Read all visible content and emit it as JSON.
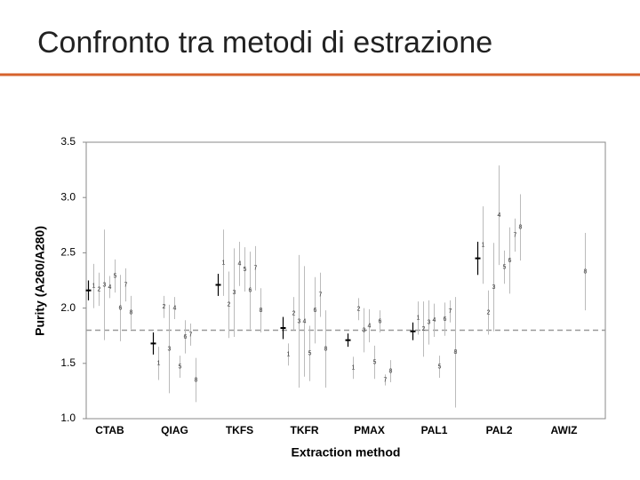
{
  "header": {
    "title": "Confronto tra metodi di estrazione"
  },
  "chart_data": {
    "type": "replicate-errorbar",
    "xlabel": "Extraction method",
    "ylabel": "Purity (A260/A280)",
    "categories": [
      "CTAB",
      "QIAG",
      "TKFS",
      "TKFR",
      "PMAX",
      "PAL1",
      "PAL2",
      "AWIZ"
    ],
    "mean": [
      2.16,
      1.68,
      2.21,
      1.82,
      1.71,
      1.79,
      2.45,
      null
    ],
    "mean_error": [
      0.09,
      0.1,
      0.1,
      0.1,
      0.06,
      0.08,
      0.15,
      null
    ],
    "mean_color": "#000000",
    "series": [
      {
        "name": "1",
        "color": "#bbbbbb",
        "values": [
          2.2,
          1.5,
          2.41,
          1.58,
          1.46,
          1.91,
          2.57,
          null
        ],
        "errors": [
          0.2,
          0.15,
          0.3,
          0.1,
          0.1,
          0.15,
          0.35,
          null
        ]
      },
      {
        "name": "2",
        "color": "#bbbbbb",
        "values": [
          2.17,
          2.01,
          2.03,
          1.95,
          1.99,
          1.81,
          1.96,
          null
        ],
        "errors": [
          0.15,
          0.1,
          0.3,
          0.15,
          0.1,
          0.25,
          0.2,
          null
        ]
      },
      {
        "name": "3",
        "color": "#bbbbbb",
        "values": [
          2.21,
          1.63,
          2.14,
          1.88,
          1.8,
          1.87,
          2.19,
          null
        ],
        "errors": [
          0.5,
          0.4,
          0.4,
          0.6,
          0.2,
          0.2,
          0.4,
          null
        ]
      },
      {
        "name": "4",
        "color": "#bbbbbb",
        "values": [
          2.19,
          2.0,
          2.4,
          1.88,
          1.84,
          1.89,
          2.84,
          null
        ],
        "errors": [
          0.1,
          0.1,
          0.2,
          0.5,
          0.15,
          0.15,
          0.45,
          null
        ]
      },
      {
        "name": "5",
        "color": "#bbbbbb",
        "values": [
          2.29,
          1.47,
          2.35,
          1.59,
          1.51,
          1.47,
          2.37,
          null
        ],
        "errors": [
          0.15,
          0.1,
          0.2,
          0.25,
          0.15,
          0.1,
          0.15,
          null
        ]
      },
      {
        "name": "6",
        "color": "#bbbbbb",
        "values": [
          2.0,
          1.74,
          2.16,
          1.98,
          1.88,
          1.9,
          2.43,
          null
        ],
        "errors": [
          0.3,
          0.15,
          0.35,
          0.3,
          0.1,
          0.15,
          0.3,
          null
        ]
      },
      {
        "name": "7",
        "color": "#bbbbbb",
        "values": [
          2.21,
          1.76,
          2.36,
          2.12,
          1.35,
          1.97,
          2.66,
          null
        ],
        "errors": [
          0.15,
          0.1,
          0.2,
          0.2,
          0.05,
          0.1,
          0.15,
          null
        ]
      },
      {
        "name": "8",
        "color": "#bbbbbb",
        "values": [
          1.96,
          1.35,
          1.98,
          1.63,
          1.43,
          1.6,
          2.73,
          2.33
        ],
        "errors": [
          0.15,
          0.2,
          0.2,
          0.35,
          0.1,
          0.5,
          0.3,
          0.35
        ]
      }
    ],
    "reference_line": 1.8,
    "ylim": [
      1.0,
      3.5
    ],
    "yticks": [
      {
        "value": 1.0,
        "label": "1.0"
      },
      {
        "value": 1.5,
        "label": "1.5"
      },
      {
        "value": 2.0,
        "label": "2.0"
      },
      {
        "value": 2.5,
        "label": "2.5"
      },
      {
        "value": 3.0,
        "label": "3.0"
      },
      {
        "value": 3.5,
        "label": "3.5"
      }
    ]
  }
}
